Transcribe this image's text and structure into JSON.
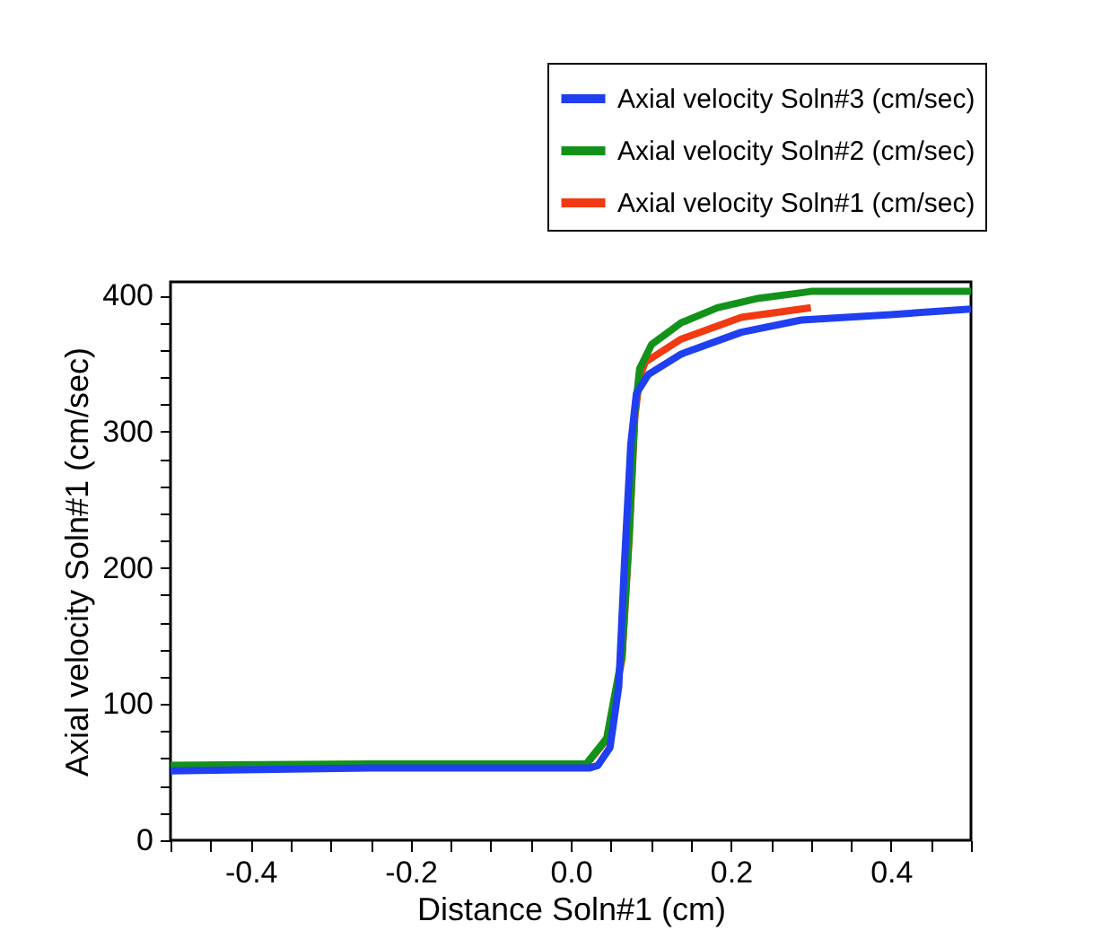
{
  "chart_data": {
    "type": "line",
    "xlabel": "Distance Soln#1 (cm)",
    "ylabel": "Axial velocity Soln#1 (cm/sec)",
    "xlim": [
      -0.5,
      0.5
    ],
    "ylim": [
      0,
      410
    ],
    "xticks": [
      {
        "value": -0.5,
        "label": null
      },
      {
        "value": -0.45,
        "label": null
      },
      -0.4,
      {
        "value": -0.35,
        "label": null
      },
      {
        "value": -0.3,
        "label": null
      },
      {
        "value": -0.25,
        "label": null
      },
      -0.2,
      {
        "value": -0.15,
        "label": null
      },
      {
        "value": -0.1,
        "label": null
      },
      {
        "value": -0.05,
        "label": null
      },
      {
        "value": 0,
        "label": "0.0"
      },
      {
        "value": 0.05,
        "label": null
      },
      {
        "value": 0.1,
        "label": null
      },
      {
        "value": 0.15,
        "label": null
      },
      0.2,
      {
        "value": 0.25,
        "label": null
      },
      {
        "value": 0.3,
        "label": null
      },
      {
        "value": 0.35,
        "label": null
      },
      0.4,
      {
        "value": 0.45,
        "label": null
      },
      {
        "value": 0.5,
        "label": null
      }
    ],
    "yticks": [
      0,
      {
        "value": 20,
        "label": null
      },
      {
        "value": 40,
        "label": null
      },
      {
        "value": 60,
        "label": null
      },
      {
        "value": 80,
        "label": null
      },
      100,
      {
        "value": 120,
        "label": null
      },
      {
        "value": 140,
        "label": null
      },
      {
        "value": 160,
        "label": null
      },
      {
        "value": 180,
        "label": null
      },
      200,
      {
        "value": 220,
        "label": null
      },
      {
        "value": 240,
        "label": null
      },
      {
        "value": 260,
        "label": null
      },
      {
        "value": 280,
        "label": null
      },
      300,
      {
        "value": 320,
        "label": null
      },
      {
        "value": 340,
        "label": null
      },
      {
        "value": 360,
        "label": null
      },
      {
        "value": 380,
        "label": null
      },
      400
    ],
    "grid": false,
    "legend": "top right",
    "marker": "none",
    "line_style": "solid",
    "series": [
      {
        "name": "Axial velocity Soln#3 (cm/sec)",
        "color": "#1f3ff0",
        "x": [
          -0.5,
          -0.25,
          0.023,
          0.034,
          0.049,
          0.06,
          0.067,
          0.075,
          0.082,
          0.097,
          0.138,
          0.213,
          0.288,
          0.4,
          0.5
        ],
        "values": [
          51,
          53,
          53,
          55,
          68,
          113,
          202,
          291,
          328,
          342,
          357,
          373,
          382,
          386,
          390
        ]
      },
      {
        "name": "Axial velocity Soln#2 (cm/sec)",
        "color": "#13921a",
        "x": [
          -0.5,
          -0.25,
          0.02,
          0.022,
          0.045,
          0.064,
          0.073,
          0.08,
          0.086,
          0.101,
          0.138,
          0.183,
          0.235,
          0.288,
          0.3,
          0.5
        ],
        "values": [
          55,
          56,
          56,
          58,
          75,
          135,
          224,
          313,
          346,
          364,
          380,
          391,
          398,
          402,
          403,
          403
        ]
      },
      {
        "name": "Axial velocity Soln#1 (cm/sec)",
        "color": "#f23a12",
        "x": [
          0.02,
          0.045,
          0.064,
          0.073,
          0.08,
          0.086,
          0.093,
          0.138,
          0.213,
          0.3
        ],
        "values": [
          56,
          74,
          133,
          222,
          310,
          340,
          351,
          368,
          384,
          391
        ]
      }
    ]
  }
}
